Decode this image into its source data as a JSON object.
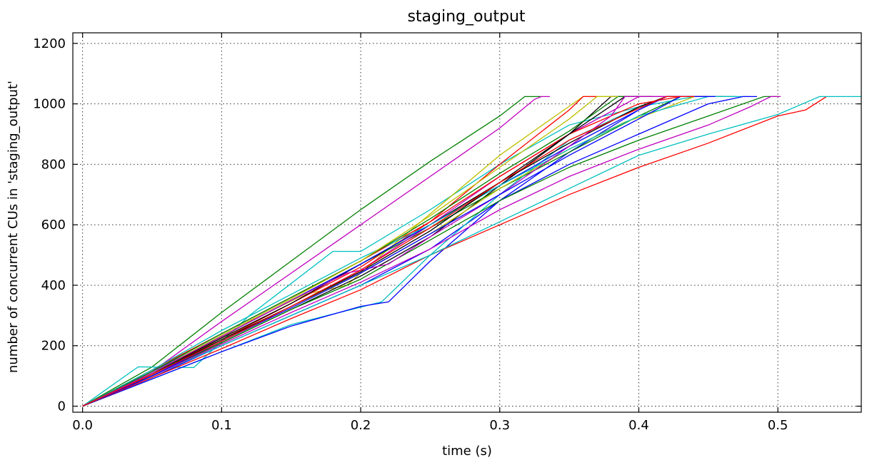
{
  "chart_data": {
    "type": "line",
    "title": "staging_output",
    "xlabel": "time (s)",
    "ylabel": "number of concurrent CUs in 'staging_output'",
    "xlim": [
      -0.007,
      0.56
    ],
    "ylim": [
      -20,
      1235
    ],
    "xticks": [
      0.0,
      0.1,
      0.2,
      0.3,
      0.4,
      0.5
    ],
    "xtick_labels": [
      "0.0",
      "0.1",
      "0.2",
      "0.3",
      "0.4",
      "0.5"
    ],
    "yticks": [
      0,
      200,
      400,
      600,
      800,
      1000,
      1200
    ],
    "ytick_labels": [
      "0",
      "200",
      "400",
      "600",
      "800",
      "1000",
      "1200"
    ],
    "grid": true,
    "series": [
      {
        "color": "#008000",
        "points": [
          [
            0,
            0
          ],
          [
            0.05,
            130
          ],
          [
            0.1,
            310
          ],
          [
            0.15,
            480
          ],
          [
            0.2,
            650
          ],
          [
            0.25,
            810
          ],
          [
            0.3,
            960
          ],
          [
            0.318,
            1024
          ],
          [
            0.33,
            1024
          ]
        ]
      },
      {
        "color": "#bf00bf",
        "points": [
          [
            0,
            0
          ],
          [
            0.05,
            115
          ],
          [
            0.1,
            280
          ],
          [
            0.15,
            440
          ],
          [
            0.2,
            600
          ],
          [
            0.25,
            760
          ],
          [
            0.3,
            920
          ],
          [
            0.325,
            1015
          ],
          [
            0.33,
            1024
          ],
          [
            0.336,
            1024
          ]
        ]
      },
      {
        "color": "#00bfbf",
        "points": [
          [
            0,
            0
          ],
          [
            0.04,
            130
          ],
          [
            0.08,
            128
          ],
          [
            0.12,
            300
          ],
          [
            0.18,
            512
          ],
          [
            0.2,
            512
          ],
          [
            0.25,
            650
          ],
          [
            0.3,
            800
          ],
          [
            0.35,
            930
          ],
          [
            0.4,
            990
          ],
          [
            0.42,
            1024
          ],
          [
            0.45,
            1024
          ]
        ]
      },
      {
        "color": "#bfbf00",
        "points": [
          [
            0,
            0
          ],
          [
            0.06,
            120
          ],
          [
            0.12,
            280
          ],
          [
            0.16,
            370
          ],
          [
            0.19,
            400
          ],
          [
            0.22,
            520
          ],
          [
            0.3,
            830
          ],
          [
            0.34,
            960
          ],
          [
            0.36,
            1024
          ],
          [
            0.38,
            1024
          ]
        ]
      },
      {
        "color": "#ff0000",
        "points": [
          [
            0,
            0
          ],
          [
            0.05,
            110
          ],
          [
            0.1,
            220
          ],
          [
            0.15,
            340
          ],
          [
            0.2,
            460
          ],
          [
            0.25,
            610
          ],
          [
            0.3,
            800
          ],
          [
            0.35,
            980
          ],
          [
            0.36,
            1024
          ],
          [
            0.37,
            1024
          ]
        ]
      },
      {
        "color": "#000000",
        "points": [
          [
            0,
            0
          ],
          [
            0.05,
            100
          ],
          [
            0.1,
            210
          ],
          [
            0.15,
            320
          ],
          [
            0.2,
            430
          ],
          [
            0.25,
            560
          ],
          [
            0.3,
            730
          ],
          [
            0.35,
            900
          ],
          [
            0.38,
            1024
          ],
          [
            0.4,
            1024
          ]
        ]
      },
      {
        "color": "#0000ff",
        "points": [
          [
            0,
            0
          ],
          [
            0.05,
            95
          ],
          [
            0.1,
            200
          ],
          [
            0.15,
            300
          ],
          [
            0.2,
            400
          ],
          [
            0.25,
            520
          ],
          [
            0.3,
            680
          ],
          [
            0.35,
            840
          ],
          [
            0.4,
            980
          ],
          [
            0.42,
            1024
          ],
          [
            0.45,
            1024
          ]
        ]
      },
      {
        "color": "#008000",
        "points": [
          [
            0,
            0
          ],
          [
            0.05,
            105
          ],
          [
            0.1,
            230
          ],
          [
            0.15,
            350
          ],
          [
            0.2,
            470
          ],
          [
            0.25,
            590
          ],
          [
            0.3,
            720
          ],
          [
            0.35,
            840
          ],
          [
            0.4,
            960
          ],
          [
            0.43,
            1024
          ],
          [
            0.47,
            1024
          ]
        ]
      },
      {
        "color": "#bf00bf",
        "points": [
          [
            0,
            0
          ],
          [
            0.05,
            100
          ],
          [
            0.1,
            215
          ],
          [
            0.15,
            330
          ],
          [
            0.2,
            450
          ],
          [
            0.25,
            600
          ],
          [
            0.3,
            760
          ],
          [
            0.35,
            900
          ],
          [
            0.4,
            1024
          ],
          [
            0.43,
            1024
          ]
        ]
      },
      {
        "color": "#00bfbf",
        "points": [
          [
            0,
            0
          ],
          [
            0.05,
            90
          ],
          [
            0.1,
            180
          ],
          [
            0.15,
            270
          ],
          [
            0.215,
            345
          ],
          [
            0.25,
            500
          ],
          [
            0.3,
            700
          ],
          [
            0.35,
            880
          ],
          [
            0.4,
            990
          ],
          [
            0.44,
            1024
          ],
          [
            0.48,
            1024
          ]
        ]
      },
      {
        "color": "#0000ff",
        "points": [
          [
            0,
            0
          ],
          [
            0.05,
            90
          ],
          [
            0.1,
            180
          ],
          [
            0.15,
            265
          ],
          [
            0.2,
            330
          ],
          [
            0.22,
            345
          ],
          [
            0.25,
            480
          ],
          [
            0.3,
            680
          ],
          [
            0.35,
            800
          ],
          [
            0.4,
            900
          ],
          [
            0.45,
            1000
          ],
          [
            0.475,
            1024
          ],
          [
            0.485,
            1024
          ]
        ]
      },
      {
        "color": "#ff0000",
        "points": [
          [
            0,
            0
          ],
          [
            0.05,
            95
          ],
          [
            0.1,
            190
          ],
          [
            0.15,
            290
          ],
          [
            0.2,
            385
          ],
          [
            0.25,
            500
          ],
          [
            0.3,
            600
          ],
          [
            0.35,
            700
          ],
          [
            0.4,
            790
          ],
          [
            0.45,
            870
          ],
          [
            0.5,
            960
          ],
          [
            0.52,
            980
          ],
          [
            0.535,
            1024
          ]
        ]
      },
      {
        "color": "#00bfbf",
        "points": [
          [
            0,
            0
          ],
          [
            0.05,
            100
          ],
          [
            0.1,
            200
          ],
          [
            0.15,
            300
          ],
          [
            0.2,
            400
          ],
          [
            0.25,
            500
          ],
          [
            0.3,
            610
          ],
          [
            0.35,
            720
          ],
          [
            0.4,
            830
          ],
          [
            0.45,
            900
          ],
          [
            0.5,
            965
          ],
          [
            0.53,
            1024
          ],
          [
            0.56,
            1024
          ]
        ]
      },
      {
        "color": "#008000",
        "points": [
          [
            0,
            0
          ],
          [
            0.05,
            100
          ],
          [
            0.1,
            210
          ],
          [
            0.15,
            320
          ],
          [
            0.2,
            420
          ],
          [
            0.25,
            550
          ],
          [
            0.3,
            680
          ],
          [
            0.35,
            790
          ],
          [
            0.4,
            880
          ],
          [
            0.45,
            960
          ],
          [
            0.49,
            1024
          ],
          [
            0.5,
            1024
          ]
        ]
      },
      {
        "color": "#bf00bf",
        "points": [
          [
            0,
            0
          ],
          [
            0.05,
            100
          ],
          [
            0.1,
            205
          ],
          [
            0.15,
            310
          ],
          [
            0.2,
            410
          ],
          [
            0.25,
            520
          ],
          [
            0.3,
            650
          ],
          [
            0.35,
            760
          ],
          [
            0.4,
            850
          ],
          [
            0.45,
            930
          ],
          [
            0.48,
            990
          ],
          [
            0.495,
            1024
          ],
          [
            0.502,
            1024
          ]
        ]
      },
      {
        "color": "#bfbf00",
        "points": [
          [
            0,
            0
          ],
          [
            0.05,
            105
          ],
          [
            0.1,
            220
          ],
          [
            0.15,
            330
          ],
          [
            0.2,
            440
          ],
          [
            0.25,
            570
          ],
          [
            0.3,
            720
          ],
          [
            0.35,
            850
          ],
          [
            0.39,
            940
          ],
          [
            0.41,
            970
          ],
          [
            0.44,
            1024
          ],
          [
            0.46,
            1024
          ]
        ]
      },
      {
        "color": "#000000",
        "points": [
          [
            0,
            0
          ],
          [
            0.05,
            110
          ],
          [
            0.1,
            225
          ],
          [
            0.15,
            340
          ],
          [
            0.2,
            470
          ],
          [
            0.25,
            600
          ],
          [
            0.3,
            740
          ],
          [
            0.35,
            870
          ],
          [
            0.4,
            990
          ],
          [
            0.42,
            1024
          ],
          [
            0.44,
            1024
          ]
        ]
      },
      {
        "color": "#ff0000",
        "points": [
          [
            0,
            0
          ],
          [
            0.05,
            120
          ],
          [
            0.1,
            240
          ],
          [
            0.15,
            360
          ],
          [
            0.2,
            480
          ],
          [
            0.25,
            610
          ],
          [
            0.3,
            760
          ],
          [
            0.35,
            900
          ],
          [
            0.4,
            1000
          ],
          [
            0.43,
            1024
          ],
          [
            0.45,
            1024
          ]
        ]
      },
      {
        "color": "#0000ff",
        "points": [
          [
            0,
            0
          ],
          [
            0.05,
            115
          ],
          [
            0.1,
            230
          ],
          [
            0.15,
            350
          ],
          [
            0.2,
            470
          ],
          [
            0.25,
            600
          ],
          [
            0.3,
            730
          ],
          [
            0.35,
            860
          ],
          [
            0.4,
            980
          ],
          [
            0.42,
            1024
          ],
          [
            0.46,
            1024
          ]
        ]
      },
      {
        "color": "#00bfbf",
        "points": [
          [
            0,
            0
          ],
          [
            0.05,
            120
          ],
          [
            0.1,
            250
          ],
          [
            0.15,
            370
          ],
          [
            0.2,
            490
          ],
          [
            0.25,
            600
          ],
          [
            0.3,
            730
          ],
          [
            0.35,
            850
          ],
          [
            0.4,
            960
          ],
          [
            0.45,
            1024
          ],
          [
            0.47,
            1024
          ]
        ]
      },
      {
        "color": "#008000",
        "points": [
          [
            0,
            0
          ],
          [
            0.05,
            115
          ],
          [
            0.1,
            240
          ],
          [
            0.15,
            360
          ],
          [
            0.2,
            480
          ],
          [
            0.25,
            620
          ],
          [
            0.3,
            770
          ],
          [
            0.35,
            910
          ],
          [
            0.385,
            1024
          ],
          [
            0.4,
            1024
          ]
        ]
      },
      {
        "color": "#bfbf00",
        "points": [
          [
            0,
            0
          ],
          [
            0.05,
            110
          ],
          [
            0.1,
            235
          ],
          [
            0.15,
            355
          ],
          [
            0.2,
            480
          ],
          [
            0.25,
            630
          ],
          [
            0.3,
            790
          ],
          [
            0.35,
            950
          ],
          [
            0.37,
            1024
          ],
          [
            0.385,
            1024
          ]
        ]
      },
      {
        "color": "#000000",
        "points": [
          [
            0,
            0
          ],
          [
            0.05,
            105
          ],
          [
            0.1,
            220
          ],
          [
            0.15,
            330
          ],
          [
            0.2,
            445
          ],
          [
            0.25,
            580
          ],
          [
            0.3,
            740
          ],
          [
            0.35,
            900
          ],
          [
            0.39,
            1024
          ],
          [
            0.41,
            1024
          ]
        ]
      },
      {
        "color": "#bf00bf",
        "points": [
          [
            0,
            0
          ],
          [
            0.05,
            110
          ],
          [
            0.1,
            230
          ],
          [
            0.15,
            350
          ],
          [
            0.19,
            440
          ],
          [
            0.22,
            470
          ],
          [
            0.25,
            560
          ],
          [
            0.3,
            700
          ],
          [
            0.35,
            860
          ],
          [
            0.38,
            960
          ],
          [
            0.39,
            1024
          ],
          [
            0.42,
            1024
          ]
        ]
      },
      {
        "color": "#0000ff",
        "points": [
          [
            0,
            0
          ],
          [
            0.05,
            100
          ],
          [
            0.1,
            215
          ],
          [
            0.15,
            325
          ],
          [
            0.2,
            440
          ],
          [
            0.25,
            570
          ],
          [
            0.3,
            700
          ],
          [
            0.35,
            830
          ],
          [
            0.4,
            950
          ],
          [
            0.43,
            1024
          ],
          [
            0.455,
            1024
          ]
        ]
      },
      {
        "color": "#ff0000",
        "points": [
          [
            0,
            0
          ],
          [
            0.05,
            105
          ],
          [
            0.1,
            215
          ],
          [
            0.15,
            330
          ],
          [
            0.2,
            450
          ],
          [
            0.25,
            590
          ],
          [
            0.3,
            740
          ],
          [
            0.35,
            880
          ],
          [
            0.4,
            985
          ],
          [
            0.42,
            1024
          ],
          [
            0.44,
            1024
          ]
        ]
      }
    ]
  }
}
